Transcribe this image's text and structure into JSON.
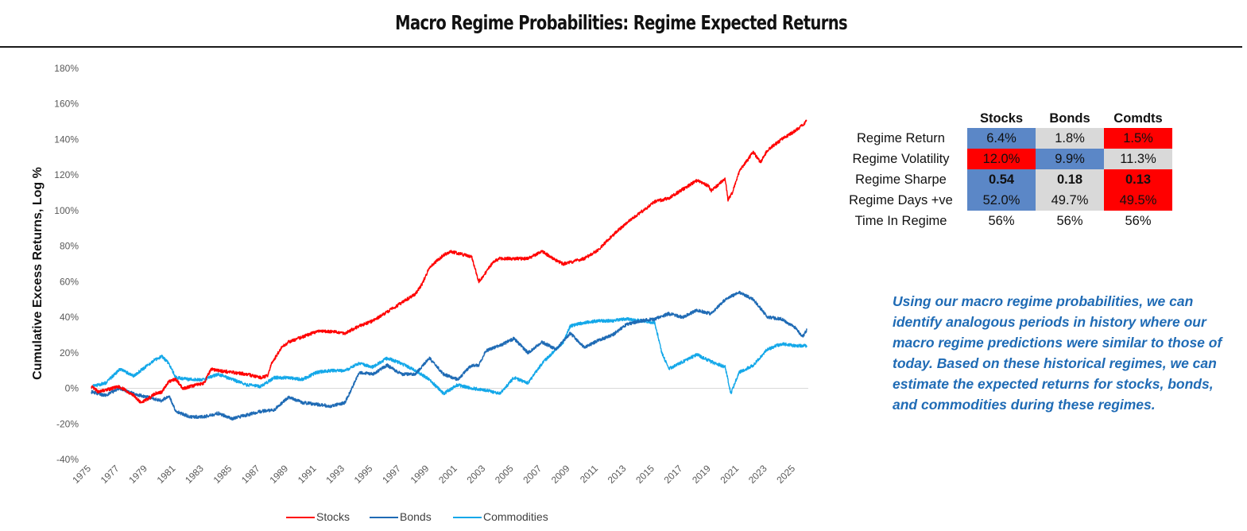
{
  "title": "Macro Regime Probabilities: Regime Expected Returns",
  "chart_data": {
    "type": "line",
    "title": "Macro Regime Probabilities: Regime Expected Returns",
    "xlabel": "",
    "ylabel": "Cumulative Excess Returns, Log %",
    "xlim": [
      1975,
      2025.9
    ],
    "ylim": [
      -40,
      180
    ],
    "y_ticks": [
      -40,
      -20,
      0,
      20,
      40,
      60,
      80,
      100,
      120,
      140,
      160,
      180
    ],
    "x_tick_labels": [
      "1975",
      "1977",
      "1979",
      "1981",
      "1983",
      "1985",
      "1987",
      "1989",
      "1991",
      "1993",
      "1995",
      "1997",
      "1999",
      "2001",
      "2003",
      "2005",
      "2007",
      "2009",
      "2011",
      "2013",
      "2015",
      "2017",
      "2019",
      "2021",
      "2023",
      "2025"
    ],
    "grid": false,
    "legend_position": "bottom",
    "series": [
      {
        "name": "Stocks",
        "color": "#ff0000",
        "x": [
          1975,
          1975.5,
          1976,
          1977,
          1978,
          1978.5,
          1979,
          1979.5,
          1980,
          1980.5,
          1981,
          1981.5,
          1982,
          1982.5,
          1983,
          1983.5,
          1984,
          1985,
          1986,
          1987,
          1987.5,
          1987.8,
          1988.5,
          1989,
          1990,
          1991,
          1992,
          1993,
          1994,
          1995,
          1996,
          1997,
          1998,
          1998.5,
          1999,
          2000,
          2000.5,
          2001,
          2002,
          2002.5,
          2003,
          2003.5,
          2004,
          2005,
          2006,
          2007,
          2008,
          2008.5,
          2009,
          2010,
          2011,
          2012,
          2013,
          2014,
          2015,
          2016,
          2017,
          2018,
          2018.8,
          2019,
          2020,
          2020.2,
          2020.5,
          2021,
          2022,
          2022.5,
          2023,
          2024,
          2025,
          2025.5,
          2025.8
        ],
        "values": [
          1,
          -2,
          -1,
          1,
          -4,
          -8,
          -6,
          -3,
          -2,
          4,
          5,
          0,
          1,
          2,
          3,
          11,
          10,
          9,
          8,
          6,
          7,
          14,
          23,
          26,
          29,
          32,
          32,
          31,
          35,
          38,
          43,
          48,
          53,
          59,
          68,
          75,
          77,
          76,
          74,
          60,
          65,
          71,
          73,
          73,
          73,
          77,
          72,
          70,
          71,
          73,
          78,
          86,
          93,
          99,
          105,
          107,
          112,
          117,
          114,
          111,
          118,
          106,
          110,
          122,
          133,
          127,
          134,
          140,
          145,
          148,
          151
        ]
      },
      {
        "name": "Bonds",
        "color": "#1f6bb5",
        "x": [
          1975,
          1976,
          1977,
          1978,
          1979,
          1980,
          1980.5,
          1981,
          1982,
          1983,
          1984,
          1985,
          1986,
          1987,
          1988,
          1989,
          1990,
          1991,
          1992,
          1993,
          1993.5,
          1994,
          1995,
          1996,
          1997,
          1998,
          1999,
          2000,
          2001,
          2002,
          2002.5,
          2003,
          2004,
          2005,
          2006,
          2007,
          2008,
          2009,
          2010,
          2011,
          2012,
          2013,
          2014,
          2015,
          2016,
          2017,
          2018,
          2019,
          2020,
          2021,
          2022,
          2023,
          2024,
          2025,
          2025.5,
          2025.8
        ],
        "values": [
          -2,
          -4,
          0,
          -3,
          -5,
          -7,
          -4,
          -13,
          -16,
          -16,
          -14,
          -17,
          -15,
          -13,
          -12,
          -5,
          -8,
          -9,
          -10,
          -8,
          0,
          9,
          8,
          13,
          8,
          8,
          17,
          8,
          5,
          13,
          13,
          21,
          24,
          28,
          20,
          26,
          22,
          31,
          23,
          27,
          30,
          36,
          38,
          39,
          42,
          40,
          44,
          42,
          50,
          54,
          50,
          40,
          39,
          34,
          29,
          33
        ]
      },
      {
        "name": "Commodities",
        "color": "#14a8e9",
        "x": [
          1975,
          1976,
          1976.8,
          1977,
          1978,
          1979,
          1979.5,
          1980,
          1980.5,
          1981,
          1982,
          1983,
          1984,
          1985,
          1986,
          1987,
          1988,
          1989,
          1990,
          1991,
          1992,
          1993,
          1994,
          1995,
          1996,
          1997,
          1998,
          1999,
          2000,
          2001,
          2002,
          2003,
          2004,
          2005,
          2006,
          2007,
          2008,
          2008.5,
          2009,
          2010,
          2011,
          2012,
          2013,
          2014,
          2015,
          2015.5,
          2016,
          2017,
          2018,
          2019,
          2020,
          2020.4,
          2021,
          2022,
          2023,
          2024,
          2025,
          2025.8
        ],
        "values": [
          1,
          3,
          9,
          11,
          7,
          13,
          16,
          18,
          14,
          6,
          5,
          5,
          8,
          5,
          2,
          1,
          6,
          6,
          5,
          9,
          10,
          10,
          14,
          12,
          17,
          14,
          10,
          5,
          -3,
          2,
          0,
          -1,
          -3,
          6,
          3,
          14,
          22,
          26,
          35,
          37,
          38,
          38,
          39,
          38,
          37,
          20,
          11,
          15,
          19,
          15,
          12,
          -3,
          9,
          13,
          22,
          25,
          24,
          24
        ]
      }
    ]
  },
  "regime_table": {
    "columns": [
      "Stocks",
      "Bonds",
      "Comdts"
    ],
    "rows": [
      {
        "label": "Regime Return",
        "values": [
          "6.4%",
          "1.8%",
          "1.5%"
        ],
        "colors": [
          "#5b87c7",
          "#d9d9d9",
          "#ff0000"
        ]
      },
      {
        "label": "Regime Volatility",
        "values": [
          "12.0%",
          "9.9%",
          "11.3%"
        ],
        "colors": [
          "#ff0000",
          "#5b87c7",
          "#d9d9d9"
        ]
      },
      {
        "label": "Regime Sharpe",
        "values": [
          "0.54",
          "0.18",
          "0.13"
        ],
        "colors": [
          "#5b87c7",
          "#d9d9d9",
          "#ff0000"
        ]
      },
      {
        "label": "Regime Days +ve",
        "values": [
          "52.0%",
          "49.7%",
          "49.5%"
        ],
        "colors": [
          "#5b87c7",
          "#d9d9d9",
          "#ff0000"
        ]
      },
      {
        "label": "Time In Regime",
        "values": [
          "56%",
          "56%",
          "56%"
        ],
        "colors": [
          "#ffffff",
          "#ffffff",
          "#ffffff"
        ]
      }
    ]
  },
  "note": "Using our macro regime probabilities, we can identify analogous periods in history where our macro regime predictions were similar to those of today. Based on these historical regimes, we can estimate the expected returns for stocks, bonds, and commodities during these regimes."
}
